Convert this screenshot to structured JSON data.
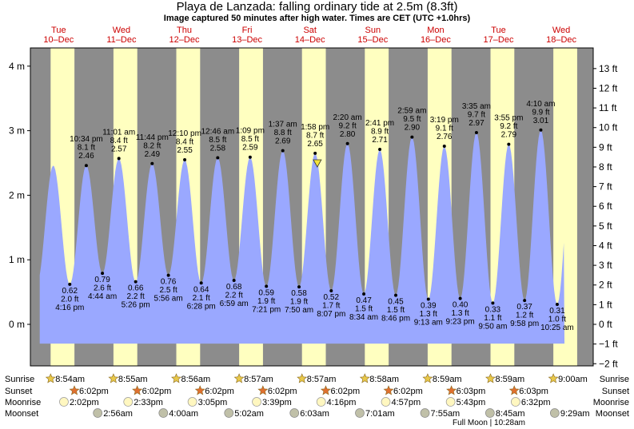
{
  "header": {
    "title": "Playa de Lanzada: falling  ordinary tide at 2.5m (8.3ft)",
    "subtitle": "Image captured 50 minutes after high water. Times are CET (UTC +1.0hrs)"
  },
  "colors": {
    "night": "#8c8c8c",
    "day": "#ffffc0",
    "tide_fill": "#9aa8ff",
    "day_label": "#cc0000",
    "sun_icon": "#e8c84a",
    "sunset_icon": "#e07030",
    "moonrise_icon": "#fff7c0",
    "moonset_icon": "#c0c0a8"
  },
  "chart_data": {
    "type": "area",
    "title": "Playa de Lanzada: falling  ordinary tide at 2.5m (8.3ft)",
    "y_left_unit": "m",
    "y_right_unit": "ft",
    "y_left_ticks": [
      "4 m",
      "3 m",
      "2 m",
      "1 m",
      "0 m"
    ],
    "y_right_ticks": [
      "13 ft",
      "12 ft",
      "11 ft",
      "10 ft",
      "9 ft",
      "8 ft",
      "7 ft",
      "6 ft",
      "5 ft",
      "4 ft",
      "3 ft",
      "2 ft",
      "1 ft",
      "0 ft",
      "−1 ft",
      "−2 ft"
    ],
    "ylim_m": [
      -0.62,
      4.0
    ],
    "x_range_days": [
      0.2,
      8.55
    ],
    "days": [
      {
        "dow": "Tue",
        "date": "10–Dec"
      },
      {
        "dow": "Wed",
        "date": "11–Dec"
      },
      {
        "dow": "Thu",
        "date": "12–Dec"
      },
      {
        "dow": "Fri",
        "date": "13–Dec"
      },
      {
        "dow": "Sat",
        "date": "14–Dec"
      },
      {
        "dow": "Sun",
        "date": "15–Dec"
      },
      {
        "dow": "Mon",
        "date": "16–Dec"
      },
      {
        "dow": "Tue",
        "date": "17–Dec"
      },
      {
        "dow": "Wed",
        "date": "18–Dec"
      }
    ],
    "daylight_hours": {
      "sunrise": 8.95,
      "sunset": 18.05
    },
    "extremes": [
      {
        "type": "low",
        "day": 0,
        "time": "4:16 pm",
        "m": "0.62",
        "ft": "2.0 ft",
        "h": 16.27,
        "v": 0.62
      },
      {
        "type": "high",
        "day": 0,
        "time": "10:34 pm",
        "m": "2.46",
        "ft": "8.1 ft",
        "h": 22.57,
        "v": 2.46
      },
      {
        "type": "low",
        "day": 1,
        "time": "4:44 am",
        "m": "0.79",
        "ft": "2.6 ft",
        "h": 4.73,
        "v": 0.79
      },
      {
        "type": "high",
        "day": 1,
        "time": "11:01 am",
        "m": "2.57",
        "ft": "8.4 ft",
        "h": 11.02,
        "v": 2.57
      },
      {
        "type": "low",
        "day": 1,
        "time": "5:26 pm",
        "m": "0.66",
        "ft": "2.2 ft",
        "h": 17.43,
        "v": 0.66
      },
      {
        "type": "high",
        "day": 1,
        "time": "11:44 pm",
        "m": "2.49",
        "ft": "8.2 ft",
        "h": 23.73,
        "v": 2.49
      },
      {
        "type": "low",
        "day": 2,
        "time": "5:56 am",
        "m": "0.76",
        "ft": "2.5 ft",
        "h": 5.93,
        "v": 0.76
      },
      {
        "type": "high",
        "day": 2,
        "time": "12:10 pm",
        "m": "2.55",
        "ft": "8.4 ft",
        "h": 12.17,
        "v": 2.55
      },
      {
        "type": "low",
        "day": 2,
        "time": "6:28 pm",
        "m": "0.64",
        "ft": "2.1 ft",
        "h": 18.47,
        "v": 0.64
      },
      {
        "type": "high",
        "day": 3,
        "time": "12:46 am",
        "m": "2.58",
        "ft": "8.5 ft",
        "h": 0.77,
        "v": 2.58
      },
      {
        "type": "low",
        "day": 3,
        "time": "6:59 am",
        "m": "0.68",
        "ft": "2.2 ft",
        "h": 6.98,
        "v": 0.68
      },
      {
        "type": "high",
        "day": 3,
        "time": "1:09 pm",
        "m": "2.59",
        "ft": "8.5 ft",
        "h": 13.15,
        "v": 2.59
      },
      {
        "type": "low",
        "day": 3,
        "time": "7:21 pm",
        "m": "0.59",
        "ft": "1.9 ft",
        "h": 19.35,
        "v": 0.59
      },
      {
        "type": "high",
        "day": 4,
        "time": "1:37 am",
        "m": "2.69",
        "ft": "8.8 ft",
        "h": 1.62,
        "v": 2.69
      },
      {
        "type": "low",
        "day": 4,
        "time": "7:50 am",
        "m": "0.58",
        "ft": "1.9 ft",
        "h": 7.83,
        "v": 0.58
      },
      {
        "type": "high",
        "day": 4,
        "time": "1:58 pm",
        "m": "2.65",
        "ft": "8.7 ft",
        "h": 13.97,
        "v": 2.65
      },
      {
        "type": "low",
        "day": 4,
        "time": "8:07 pm",
        "m": "0.52",
        "ft": "1.7 ft",
        "h": 20.12,
        "v": 0.52
      },
      {
        "type": "high",
        "day": 5,
        "time": "2:20 am",
        "m": "2.80",
        "ft": "9.2 ft",
        "h": 2.33,
        "v": 2.8
      },
      {
        "type": "low",
        "day": 5,
        "time": "8:34 am",
        "m": "0.47",
        "ft": "1.5 ft",
        "h": 8.57,
        "v": 0.47
      },
      {
        "type": "high",
        "day": 5,
        "time": "2:41 pm",
        "m": "2.71",
        "ft": "8.9 ft",
        "h": 14.68,
        "v": 2.71
      },
      {
        "type": "low",
        "day": 5,
        "time": "8:46 pm",
        "m": "0.45",
        "ft": "1.5 ft",
        "h": 20.77,
        "v": 0.45
      },
      {
        "type": "high",
        "day": 6,
        "time": "2:59 am",
        "m": "2.90",
        "ft": "9.5 ft",
        "h": 2.98,
        "v": 2.9
      },
      {
        "type": "low",
        "day": 6,
        "time": "9:13 am",
        "m": "0.39",
        "ft": "1.3 ft",
        "h": 9.22,
        "v": 0.39
      },
      {
        "type": "high",
        "day": 6,
        "time": "3:19 pm",
        "m": "2.76",
        "ft": "9.1 ft",
        "h": 15.32,
        "v": 2.76
      },
      {
        "type": "low",
        "day": 6,
        "time": "9:23 pm",
        "m": "0.40",
        "ft": "1.3 ft",
        "h": 21.38,
        "v": 0.4
      },
      {
        "type": "high",
        "day": 7,
        "time": "3:35 am",
        "m": "2.97",
        "ft": "9.7 ft",
        "h": 3.58,
        "v": 2.97
      },
      {
        "type": "low",
        "day": 7,
        "time": "9:50 am",
        "m": "0.33",
        "ft": "1.1 ft",
        "h": 9.83,
        "v": 0.33
      },
      {
        "type": "high",
        "day": 7,
        "time": "3:55 pm",
        "m": "2.79",
        "ft": "9.2 ft",
        "h": 15.92,
        "v": 2.79
      },
      {
        "type": "low",
        "day": 7,
        "time": "9:58 pm",
        "m": "0.37",
        "ft": "1.2 ft",
        "h": 21.97,
        "v": 0.37
      },
      {
        "type": "high",
        "day": 8,
        "time": "4:10 am",
        "m": "3.01",
        "ft": "9.9 ft",
        "h": 4.17,
        "v": 3.01
      },
      {
        "type": "low",
        "day": 8,
        "time": "10:25 am",
        "m": "0.31",
        "ft": "1.0 ft",
        "h": 10.42,
        "v": 0.31
      }
    ],
    "current_marker": {
      "day": 4,
      "h": 14.8,
      "v": 2.5
    }
  },
  "astro": {
    "row_labels": {
      "sunrise": "Sunrise",
      "sunset": "Sunset",
      "moonrise": "Moonrise",
      "moonset": "Moonset"
    },
    "sunrise": [
      {
        "day": 0,
        "time": "8:54am"
      },
      {
        "day": 1,
        "time": "8:55am"
      },
      {
        "day": 2,
        "time": "8:56am"
      },
      {
        "day": 3,
        "time": "8:57am"
      },
      {
        "day": 4,
        "time": "8:57am"
      },
      {
        "day": 5,
        "time": "8:58am"
      },
      {
        "day": 6,
        "time": "8:59am"
      },
      {
        "day": 7,
        "time": "8:59am"
      },
      {
        "day": 8,
        "time": "9:00am"
      }
    ],
    "sunset": [
      {
        "day": 0,
        "time": "6:02pm"
      },
      {
        "day": 1,
        "time": "6:02pm"
      },
      {
        "day": 2,
        "time": "6:02pm"
      },
      {
        "day": 3,
        "time": "6:02pm"
      },
      {
        "day": 4,
        "time": "6:02pm"
      },
      {
        "day": 5,
        "time": "6:02pm"
      },
      {
        "day": 6,
        "time": "6:03pm"
      },
      {
        "day": 7,
        "time": "6:03pm"
      }
    ],
    "moonrise": [
      {
        "day": 0,
        "h": 14.03,
        "time": "2:02pm"
      },
      {
        "day": 1,
        "h": 14.55,
        "time": "2:33pm"
      },
      {
        "day": 2,
        "h": 15.08,
        "time": "3:05pm"
      },
      {
        "day": 3,
        "h": 15.65,
        "time": "3:39pm"
      },
      {
        "day": 4,
        "h": 16.27,
        "time": "4:16pm"
      },
      {
        "day": 5,
        "h": 16.95,
        "time": "4:57pm"
      },
      {
        "day": 6,
        "h": 17.72,
        "time": "5:43pm"
      },
      {
        "day": 7,
        "h": 18.53,
        "time": "6:32pm"
      }
    ],
    "moonset": [
      {
        "day": 1,
        "h": 2.93,
        "time": "2:56am"
      },
      {
        "day": 2,
        "h": 4.0,
        "time": "4:00am"
      },
      {
        "day": 3,
        "h": 5.03,
        "time": "5:02am"
      },
      {
        "day": 4,
        "h": 6.05,
        "time": "6:03am"
      },
      {
        "day": 5,
        "h": 7.02,
        "time": "7:01am"
      },
      {
        "day": 6,
        "h": 7.92,
        "time": "7:55am"
      },
      {
        "day": 7,
        "h": 8.75,
        "time": "8:45am"
      },
      {
        "day": 8,
        "h": 9.48,
        "time": "9:29am"
      }
    ],
    "full_moon_note": "Full Moon | 10:28am"
  }
}
